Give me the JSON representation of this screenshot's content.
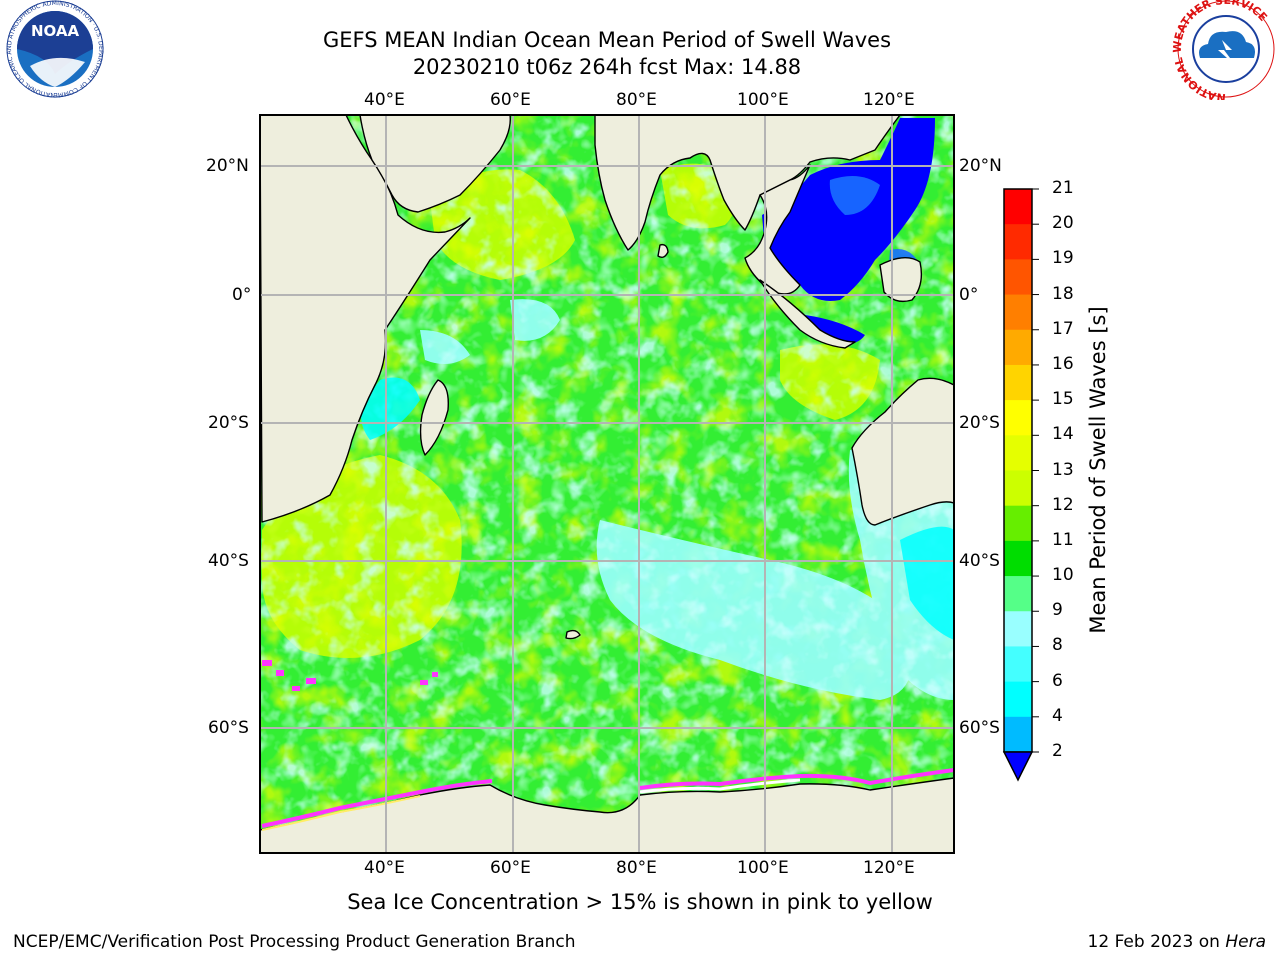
{
  "title": {
    "line1": "GEFS MEAN Indian Ocean Mean Period of Swell Waves",
    "line2": "20230210 t06z 264h fcst   Max: 14.88"
  },
  "map": {
    "lon_labels_top": [
      "40°E",
      "60°E",
      "80°E",
      "100°E",
      "120°E"
    ],
    "lon_labels_bottom": [
      "40°E",
      "60°E",
      "80°E",
      "100°E",
      "120°E"
    ],
    "lat_labels_left": [
      "20°N",
      "0°",
      "20°S",
      "40°S",
      "60°S"
    ],
    "lat_labels_right": [
      "20°N",
      "0°",
      "20°S",
      "40°S",
      "60°S"
    ],
    "colors": {
      "land": "#eeeedd",
      "grid": "#b4b4b4",
      "coast": "#000000",
      "ocean_base": "#33ee33",
      "high_period": "#ccff00",
      "low_period": "#99ffff",
      "shallow_sea": "#0000ff",
      "sea_ice": "#ff33ff"
    }
  },
  "colorbar": {
    "label": "Mean Period of Swell Waves [s]",
    "ticks": [
      "21",
      "20",
      "19",
      "18",
      "17",
      "16",
      "15",
      "14",
      "13",
      "12",
      "11",
      "10",
      "9",
      "8",
      "6",
      "4",
      "2"
    ],
    "colors": [
      "#ff0000",
      "#ff2a00",
      "#ff5500",
      "#ff7f00",
      "#ffaa00",
      "#ffd400",
      "#ffff00",
      "#e5ff00",
      "#ccff00",
      "#66ee00",
      "#00dd00",
      "#55ff88",
      "#99ffff",
      "#44ffff",
      "#00ffff",
      "#00bbff",
      "#0066ff"
    ],
    "extend_color": "#0000ff"
  },
  "notes": {
    "sea_ice": "Sea Ice Concentration > 15% is shown in pink to yellow"
  },
  "footer": {
    "left": "NCEP/EMC/Verification Post Processing Product Generation Branch",
    "right_prefix": "12 Feb 2023 on ",
    "right_machine": "Hera"
  },
  "logos": {
    "noaa": "NOAA",
    "noaa_ring": "NATIONAL OCEANIC AND ATMOSPHERIC ADMINISTRATION · U.S. DEPARTMENT OF COMMERCE",
    "nws_ring": "NATIONAL WEATHER SERVICE"
  }
}
